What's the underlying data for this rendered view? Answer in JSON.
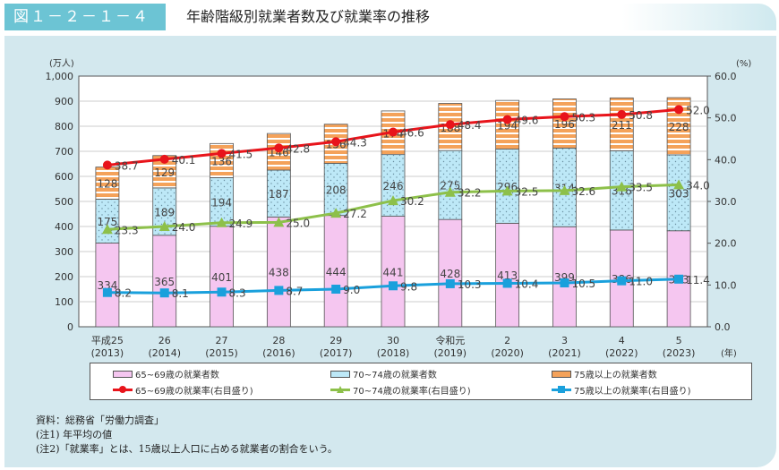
{
  "header": {
    "figure_no": "図１－２－１－４",
    "title": "年齢階級別就業者数及び就業率の推移"
  },
  "chart_data": {
    "type": "bar+line",
    "title": "年齢階級別就業者数及び就業率の推移",
    "ylabel_left": "(万人)",
    "ylabel_right": "(%)",
    "xunit": "(年)",
    "ylim_left": [
      0,
      1000
    ],
    "ylim_right": [
      0,
      60
    ],
    "yticks_left": [
      "0",
      "100",
      "200",
      "300",
      "400",
      "500",
      "600",
      "700",
      "800",
      "900",
      "1,000"
    ],
    "yticks_right": [
      "0.0",
      "10.0",
      "20.0",
      "30.0",
      "40.0",
      "50.0",
      "60.0"
    ],
    "grid": true,
    "categories": [
      [
        "平成25",
        "(2013)"
      ],
      [
        "26",
        "(2014)"
      ],
      [
        "27",
        "(2015)"
      ],
      [
        "28",
        "(2016)"
      ],
      [
        "29",
        "(2017)"
      ],
      [
        "30",
        "(2018)"
      ],
      [
        "令和元",
        "(2019)"
      ],
      [
        "2",
        "(2020)"
      ],
      [
        "3",
        "(2021)"
      ],
      [
        "4",
        "(2022)"
      ],
      [
        "5",
        "(2023)"
      ]
    ],
    "bars": [
      {
        "name": "65~69歳の就業者数",
        "color": "#f5c6f0",
        "values": [
          334,
          365,
          401,
          438,
          444,
          441,
          428,
          413,
          399,
          386,
          383
        ]
      },
      {
        "name": "70~74歳の就業者数",
        "color": "#bde8f7",
        "values": [
          175,
          189,
          194,
          187,
          208,
          246,
          275,
          296,
          314,
          316,
          303
        ]
      },
      {
        "name": "75歳以上の就業者数",
        "color": "#f4a25a",
        "values": [
          128,
          129,
          136,
          146,
          156,
          174,
          188,
          194,
          196,
          211,
          228
        ]
      }
    ],
    "lines": [
      {
        "name": "65~69歳の就業率(右目盛り)",
        "color": "#e8141b",
        "marker": "circle",
        "values": [
          38.7,
          40.1,
          41.5,
          42.8,
          44.3,
          46.6,
          48.4,
          49.6,
          50.3,
          50.8,
          52.0
        ]
      },
      {
        "name": "70~74歳の就業率(右目盛り)",
        "color": "#8dc04a",
        "marker": "triangle",
        "values": [
          23.3,
          24.0,
          24.9,
          25.0,
          27.2,
          30.2,
          32.2,
          32.5,
          32.6,
          33.5,
          34.0
        ]
      },
      {
        "name": "75歳以上の就業率(右目盛り)",
        "color": "#1aa0dc",
        "marker": "square",
        "values": [
          8.2,
          8.1,
          8.3,
          8.7,
          9.0,
          9.8,
          10.3,
          10.4,
          10.5,
          11.0,
          11.4
        ]
      }
    ],
    "legend": "bottom"
  },
  "notes": [
    "資料：総務省「労働力調査」",
    "(注1) 年平均の値",
    "(注2)「就業率」とは、15歳以上人口に占める就業者の割合をいう。"
  ]
}
